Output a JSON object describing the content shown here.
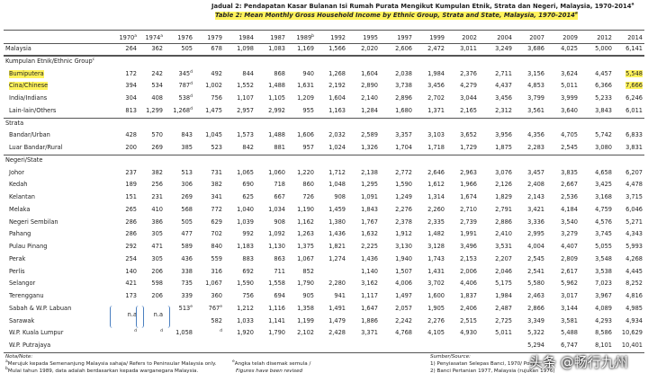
{
  "header": {
    "title": "Jadual 2: Pendapatan Kasar Bulanan Isi Rumah Purata Mengikut Kumpulan Etnik, Strata dan Negeri, Malaysia, 1970-2014",
    "title_note": "a",
    "subtitle": "Table 2: Mean Monthly Gross Household Income by Ethnic Group, Strata and State, Malaysia, 1970-2014",
    "subtitle_note": "a"
  },
  "table": {
    "columns": [
      {
        "text": "1970",
        "note": "a"
      },
      {
        "text": "1974",
        "note": "a"
      },
      "1976",
      "1979",
      "1984",
      "1987",
      {
        "text": "1989",
        "note": "b"
      },
      "1992",
      "1995",
      "1997",
      "1999",
      "2002",
      "2004",
      "2007",
      "2009",
      "2012",
      "2014"
    ],
    "rows": [
      {
        "label": "Malaysia",
        "cells": [
          "264",
          "362",
          "505",
          "678",
          "1,098",
          "1,083",
          "1,169",
          "1,566",
          "2,020",
          "2,606",
          "2,472",
          "3,011",
          "3,249",
          "3,686",
          "4,025",
          "5,000",
          "6,141"
        ]
      },
      {
        "section": "Kumpulan Etnik/Ethnic Group",
        "note": "c"
      },
      {
        "label": "Bumiputera",
        "highlight": true,
        "cells": [
          "172",
          "242",
          {
            "text": "345",
            "note": "d"
          },
          "492",
          "844",
          "868",
          "940",
          "1,268",
          "1,604",
          "2,038",
          "1,984",
          "2,376",
          "2,711",
          "3,156",
          "3,624",
          "4,457",
          {
            "text": "5,548",
            "highlight": true
          }
        ]
      },
      {
        "label": "Cina/Chinese",
        "highlight": true,
        "cells": [
          "394",
          "534",
          {
            "text": "787",
            "note": "d"
          },
          "1,002",
          "1,552",
          "1,488",
          "1,631",
          "2,192",
          "2,890",
          "3,738",
          "3,456",
          "4,279",
          "4,437",
          "4,853",
          "5,011",
          "6,366",
          {
            "text": "7,666",
            "highlight": true
          }
        ]
      },
      {
        "label": "India/Indians",
        "cells": [
          "304",
          "408",
          {
            "text": "538",
            "note": "d"
          },
          "756",
          "1,107",
          "1,105",
          "1,209",
          "1,604",
          "2,140",
          "2,896",
          "2,702",
          "3,044",
          "3,456",
          "3,799",
          "3,999",
          "5,233",
          "6,246"
        ]
      },
      {
        "label": "Lain-lain/Others",
        "cells": [
          "813",
          "1,299",
          {
            "text": "1,268",
            "note": "d"
          },
          "1,475",
          "2,957",
          "2,992",
          "955",
          "1,163",
          "1,284",
          "1,680",
          "1,371",
          "2,165",
          "2,312",
          "3,561",
          "3,640",
          "3,843",
          "6,011"
        ]
      },
      {
        "section": "Strata"
      },
      {
        "label": "Bandar/Urban",
        "cells": [
          "428",
          "570",
          "843",
          "1,045",
          "1,573",
          "1,488",
          "1,606",
          "2,032",
          "2,589",
          "3,357",
          "3,103",
          "3,652",
          "3,956",
          "4,356",
          "4,705",
          "5,742",
          "6,833"
        ]
      },
      {
        "label": "Luar Bandar/Rural",
        "cells": [
          "200",
          "269",
          "385",
          "523",
          "842",
          "881",
          "957",
          "1,024",
          "1,326",
          "1,704",
          "1,718",
          "1,729",
          "1,875",
          "2,283",
          "2,545",
          "3,080",
          "3,831"
        ]
      },
      {
        "section": "Negeri/State"
      },
      {
        "label": "Johor",
        "cells": [
          "237",
          "382",
          "513",
          "731",
          "1,065",
          "1,060",
          "1,220",
          "1,712",
          "2,138",
          "2,772",
          "2,646",
          "2,963",
          "3,076",
          "3,457",
          "3,835",
          "4,658",
          "6,207"
        ]
      },
      {
        "label": "Kedah",
        "cells": [
          "189",
          "256",
          "306",
          "382",
          "690",
          "718",
          "860",
          "1,048",
          "1,295",
          "1,590",
          "1,612",
          "1,966",
          "2,126",
          "2,408",
          "2,667",
          "3,425",
          "4,478"
        ]
      },
      {
        "label": "Kelantan",
        "cells": [
          "151",
          "231",
          "269",
          "341",
          "625",
          "667",
          "726",
          "908",
          "1,091",
          "1,249",
          "1,314",
          "1,674",
          "1,829",
          "2,143",
          "2,536",
          "3,168",
          "3,715"
        ]
      },
      {
        "label": "Melaka",
        "cells": [
          "265",
          "410",
          "568",
          "772",
          "1,040",
          "1,034",
          "1,190",
          "1,459",
          "1,843",
          "2,276",
          "2,260",
          "2,710",
          "2,791",
          "3,421",
          "4,184",
          "4,759",
          "6,046"
        ]
      },
      {
        "label": "Negeri Sembilan",
        "cells": [
          "286",
          "386",
          "505",
          "629",
          "1,039",
          "908",
          "1,162",
          "1,380",
          "1,767",
          "2,378",
          "2,335",
          "2,739",
          "2,886",
          "3,336",
          "3,540",
          "4,576",
          "5,271"
        ]
      },
      {
        "label": "Pahang",
        "cells": [
          "286",
          "305",
          "477",
          "702",
          "992",
          "1,092",
          "1,263",
          "1,436",
          "1,632",
          "1,912",
          "1,482",
          "1,991",
          "2,410",
          "2,995",
          "3,279",
          "3,745",
          "4,343"
        ]
      },
      {
        "label": "Pulau Pinang",
        "cells": [
          "292",
          "471",
          "589",
          "840",
          "1,183",
          "1,130",
          "1,375",
          "1,821",
          "2,225",
          "3,130",
          "3,128",
          "3,496",
          "3,531",
          "4,004",
          "4,407",
          "5,055",
          "5,993"
        ]
      },
      {
        "label": "Perak",
        "cells": [
          "254",
          "305",
          "436",
          "559",
          "883",
          "863",
          "1,067",
          "1,274",
          "1,436",
          "1,940",
          "1,743",
          "2,153",
          "2,207",
          "2,545",
          "2,809",
          "3,548",
          "4,268"
        ]
      },
      {
        "label": "Perlis",
        "cells": [
          "140",
          "206",
          "338",
          "316",
          "692",
          "711",
          "852",
          null,
          "1,140",
          "1,507",
          "1,431",
          "2,006",
          "2,046",
          "2,541",
          "2,617",
          "3,538",
          "4,445"
        ]
      },
      {
        "label": "Selangor",
        "cells": [
          "421",
          "598",
          "735",
          "1,067",
          "1,590",
          "1,558",
          "1,790",
          "2,280",
          "3,162",
          "4,006",
          "3,702",
          "4,406",
          "5,175",
          "5,580",
          "5,962",
          "7,023",
          "8,252"
        ]
      },
      {
        "label": "Terengganu",
        "cells": [
          "173",
          "206",
          "339",
          "360",
          "756",
          "694",
          "905",
          "941",
          "1,117",
          "1,497",
          "1,600",
          "1,837",
          "1,984",
          "2,463",
          "3,017",
          "3,967",
          "4,816"
        ]
      },
      {
        "label": "Sabah & W.P. Labuan",
        "cells": [
          {
            "text": "n.a",
            "rowspan": 2
          },
          {
            "text": "n.a",
            "rowspan": 2
          },
          {
            "text": "513",
            "note": "e"
          },
          {
            "text": "767",
            "note": "e"
          },
          "1,212",
          "1,116",
          "1,358",
          "1,491",
          "1,647",
          "2,057",
          "1,905",
          "2,406",
          "2,487",
          "2,866",
          "3,144",
          "4,089",
          "4,985"
        ]
      },
      {
        "label": "Sarawak",
        "cells": [
          null,
          null,
          null,
          "582",
          "1,033",
          "1,141",
          "1,199",
          "1,479",
          "1,886",
          "2,242",
          "2,276",
          "2,515",
          "2,725",
          "3,349",
          "3,581",
          "4,293",
          "4,934"
        ]
      },
      {
        "label": "W.P. Kuala Lumpur",
        "cells": [
          {
            "note": "d"
          },
          {
            "note": "d"
          },
          "1,058",
          {
            "note": "d"
          },
          "1,920",
          "1,790",
          "2,102",
          "2,428",
          "3,371",
          "4,768",
          "4,105",
          "4,930",
          "5,011",
          "5,322",
          "5,488",
          "8,586",
          "10,629"
        ]
      },
      {
        "label": "W.P. Putrajaya",
        "cells": [
          null,
          null,
          null,
          null,
          null,
          null,
          null,
          null,
          null,
          null,
          null,
          null,
          null,
          "5,294",
          "6,747",
          "8,101",
          "10,401"
        ]
      }
    ]
  },
  "notes": {
    "heading": "Nota/Note:",
    "items": [
      {
        "mark": "a",
        "text": "Merujuk kepada Semenanjung Malaysia sahaja/ Refers to Peninsular Malaysia only."
      },
      {
        "mark": "b",
        "text": "Mulai tahun 1989, data adalah berdasarkan kepada warganegara Malaysia."
      }
    ],
    "revised": {
      "mark": "e",
      "text": "Angka telah disemak semula /",
      "text2": "Figures have been revised"
    }
  },
  "source": {
    "heading": "Sumber/Source:",
    "items": [
      "1) Penyiasatan Selepas Banci, 1970/ Post E",
      "2) Banci Pertanian 1977, Malaysia (rujukan 1976)"
    ]
  },
  "watermark": "头条 @畅行九州"
}
